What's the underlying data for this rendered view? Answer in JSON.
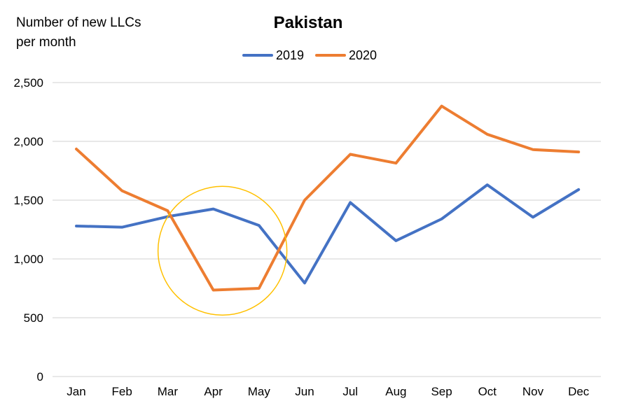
{
  "chart_data": {
    "type": "line",
    "title": "Pakistan",
    "ylabel": "Number of new LLCs per month",
    "ylabel_lines": [
      "Number of new LLCs",
      "per month"
    ],
    "xlabel": "",
    "categories": [
      "Jan",
      "Feb",
      "Mar",
      "Apr",
      "May",
      "Jun",
      "Jul",
      "Aug",
      "Sep",
      "Oct",
      "Nov",
      "Dec"
    ],
    "ylim": [
      0,
      2500
    ],
    "yticks": [
      0,
      500,
      1000,
      1500,
      2000,
      2500
    ],
    "ytick_labels": [
      "0",
      "500",
      "1,000",
      "1,500",
      "2,000",
      "2,500"
    ],
    "grid": true,
    "legend_position": "top-center",
    "series": [
      {
        "name": "2019",
        "color": "#4472C4",
        "values": [
          1280,
          1270,
          1360,
          1425,
          1285,
          795,
          1480,
          1155,
          1340,
          1630,
          1355,
          1590
        ]
      },
      {
        "name": "2020",
        "color": "#ED7D31",
        "values": [
          1935,
          1580,
          1410,
          735,
          750,
          1500,
          1890,
          1815,
          2300,
          2060,
          1930,
          1910
        ]
      }
    ],
    "annotation": {
      "shape": "circle",
      "color": "#FFC000",
      "center_x": 3.2,
      "center_y": 1070
    }
  }
}
